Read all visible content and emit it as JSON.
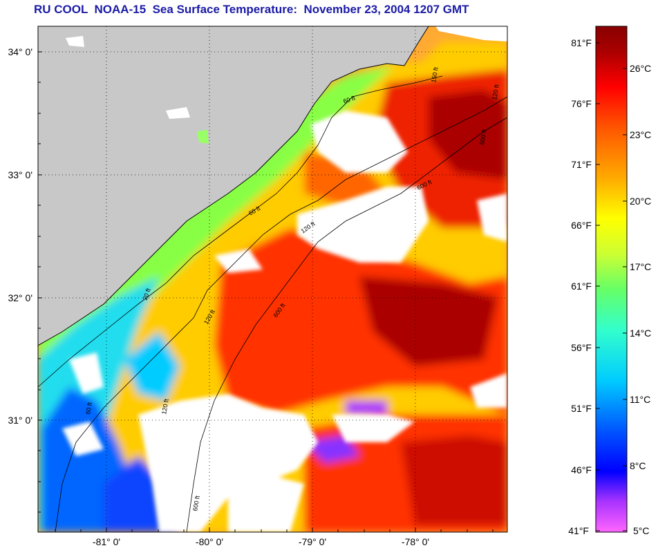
{
  "title": "RU COOL  NOAA-15  Sea Surface Temperature:  November 23, 2004 1207 GMT",
  "map": {
    "lon_range": [
      -81.65,
      -77.0
    ],
    "lat_range": [
      30.25,
      34.3
    ],
    "lat_ticks": [
      {
        "value": 34,
        "label": "34° 0'"
      },
      {
        "value": 33,
        "label": "33° 0'"
      },
      {
        "value": 32,
        "label": "32° 0'"
      },
      {
        "value": 31,
        "label": "31° 0'"
      }
    ],
    "lon_ticks": [
      {
        "value": -81,
        "label": "-81° 0'"
      },
      {
        "value": -80,
        "label": "-80° 0'"
      },
      {
        "value": -79,
        "label": "-79° 0'"
      },
      {
        "value": -78,
        "label": "-78° 0'"
      }
    ],
    "contour_labels": [
      "60 ft",
      "60 ft",
      "120 ft",
      "120 ft",
      "120 ft",
      "600 ft",
      "600 ft",
      "600 ft",
      "150 ft",
      "120 ft",
      "600 ft",
      "20 ft",
      "60 ft"
    ],
    "colors": {
      "land": "#c8c8c8",
      "cloud": "#ffffff",
      "coastline": "#000000"
    }
  },
  "colorbar": {
    "fahrenheit_labels": [
      "81°F",
      "76°F",
      "71°F",
      "66°F",
      "61°F",
      "56°F",
      "51°F",
      "46°F",
      "41°F"
    ],
    "celsius_labels": [
      "26°C",
      "23°C",
      "20°C",
      "17°C",
      "14°C",
      "11°C",
      "8°C",
      "5°C"
    ],
    "range_c": [
      5,
      28
    ],
    "colors": [
      "#ff66ff",
      "#8800ff",
      "#0000ff",
      "#0066ff",
      "#00ccff",
      "#00ffcc",
      "#66ff66",
      "#ccff33",
      "#ffff00",
      "#ffaa00",
      "#ff5500",
      "#ff0000",
      "#aa0000",
      "#880000"
    ]
  }
}
